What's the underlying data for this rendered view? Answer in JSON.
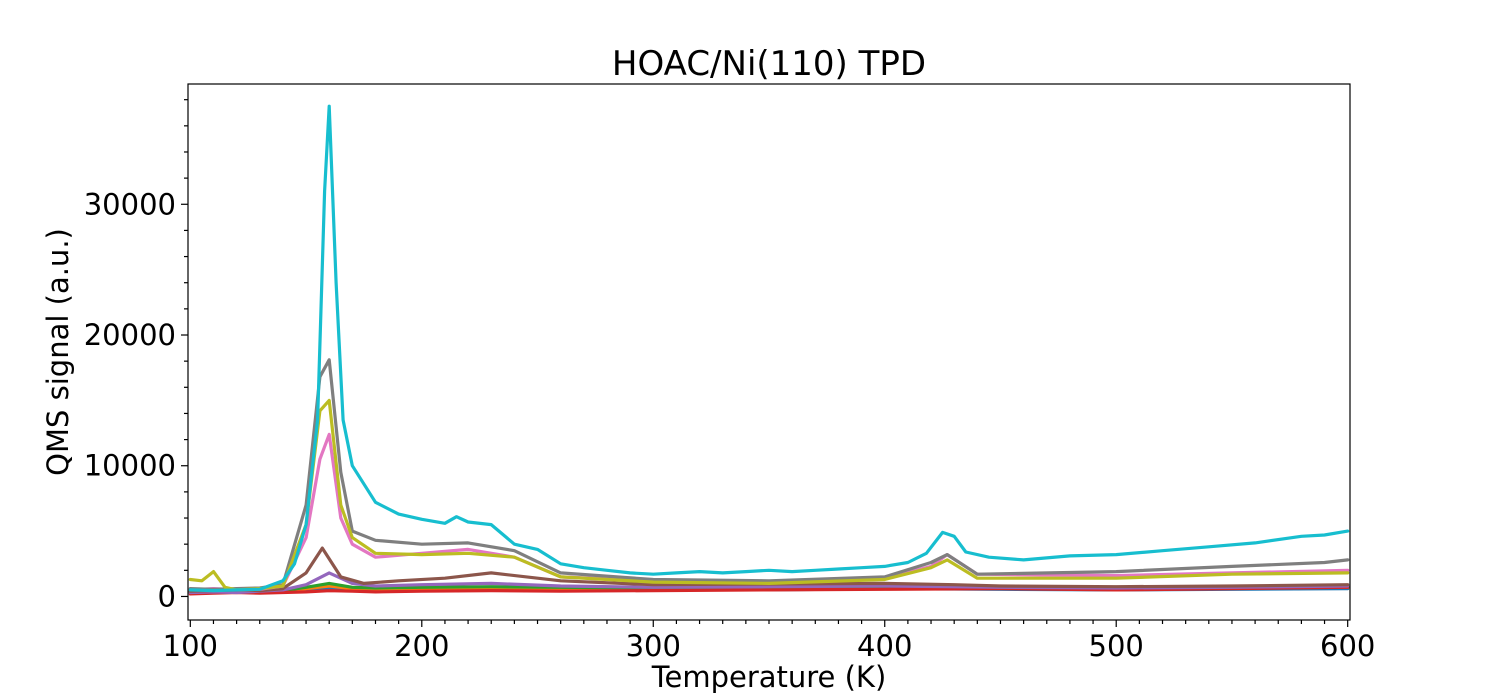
{
  "chart_data": {
    "type": "line",
    "title": "HOAC/Ni(110) TPD",
    "xlabel": "Temperature (K)",
    "ylabel": "QMS signal (a.u.)",
    "xlim": [
      99,
      601
    ],
    "ylim": [
      -1800,
      39200
    ],
    "xticks": [
      100,
      200,
      300,
      400,
      500,
      600
    ],
    "yticks": [
      0,
      10000,
      20000,
      30000
    ],
    "legend": "none",
    "grid": false,
    "series": [
      {
        "color": "#1f77b4",
        "points": [
          [
            100,
            300
          ],
          [
            110,
            350
          ],
          [
            120,
            400
          ],
          [
            130,
            300
          ],
          [
            140,
            350
          ],
          [
            150,
            500
          ],
          [
            160,
            600
          ],
          [
            170,
            500
          ],
          [
            180,
            450
          ],
          [
            200,
            500
          ],
          [
            230,
            550
          ],
          [
            260,
            500
          ],
          [
            300,
            550
          ],
          [
            350,
            500
          ],
          [
            400,
            600
          ],
          [
            450,
            550
          ],
          [
            500,
            500
          ],
          [
            550,
            550
          ],
          [
            600,
            600
          ]
        ]
      },
      {
        "color": "#ff7f0e",
        "points": [
          [
            100,
            400
          ],
          [
            110,
            450
          ],
          [
            120,
            350
          ],
          [
            130,
            400
          ],
          [
            140,
            400
          ],
          [
            150,
            600
          ],
          [
            160,
            800
          ],
          [
            170,
            600
          ],
          [
            180,
            550
          ],
          [
            200,
            600
          ],
          [
            230,
            650
          ],
          [
            260,
            600
          ],
          [
            300,
            600
          ],
          [
            350,
            650
          ],
          [
            400,
            700
          ],
          [
            450,
            650
          ],
          [
            500,
            600
          ],
          [
            550,
            650
          ],
          [
            600,
            700
          ]
        ]
      },
      {
        "color": "#2ca02c",
        "points": [
          [
            100,
            350
          ],
          [
            110,
            400
          ],
          [
            120,
            400
          ],
          [
            130,
            350
          ],
          [
            140,
            450
          ],
          [
            150,
            700
          ],
          [
            160,
            1000
          ],
          [
            170,
            700
          ],
          [
            180,
            650
          ],
          [
            200,
            700
          ],
          [
            230,
            750
          ],
          [
            260,
            700
          ],
          [
            300,
            650
          ],
          [
            350,
            700
          ],
          [
            400,
            750
          ],
          [
            450,
            700
          ],
          [
            500,
            650
          ],
          [
            550,
            700
          ],
          [
            600,
            750
          ]
        ]
      },
      {
        "color": "#d62728",
        "points": [
          [
            100,
            200
          ],
          [
            110,
            250
          ],
          [
            120,
            300
          ],
          [
            130,
            250
          ],
          [
            140,
            300
          ],
          [
            150,
            350
          ],
          [
            160,
            450
          ],
          [
            170,
            400
          ],
          [
            180,
            350
          ],
          [
            200,
            400
          ],
          [
            230,
            450
          ],
          [
            260,
            400
          ],
          [
            300,
            450
          ],
          [
            350,
            500
          ],
          [
            400,
            550
          ],
          [
            450,
            600
          ],
          [
            500,
            500
          ],
          [
            550,
            600
          ],
          [
            600,
            700
          ]
        ]
      },
      {
        "color": "#9467bd",
        "points": [
          [
            100,
            300
          ],
          [
            110,
            350
          ],
          [
            120,
            300
          ],
          [
            130,
            400
          ],
          [
            140,
            500
          ],
          [
            150,
            900
          ],
          [
            160,
            1800
          ],
          [
            170,
            1000
          ],
          [
            180,
            800
          ],
          [
            200,
            900
          ],
          [
            230,
            1000
          ],
          [
            260,
            800
          ],
          [
            300,
            700
          ],
          [
            350,
            750
          ],
          [
            400,
            800
          ],
          [
            450,
            700
          ],
          [
            500,
            650
          ],
          [
            550,
            700
          ],
          [
            600,
            800
          ]
        ]
      },
      {
        "color": "#8c564b",
        "points": [
          [
            100,
            400
          ],
          [
            110,
            450
          ],
          [
            120,
            500
          ],
          [
            130,
            450
          ],
          [
            140,
            600
          ],
          [
            150,
            1800
          ],
          [
            157,
            3700
          ],
          [
            165,
            1500
          ],
          [
            175,
            1000
          ],
          [
            190,
            1200
          ],
          [
            210,
            1400
          ],
          [
            230,
            1800
          ],
          [
            260,
            1200
          ],
          [
            300,
            900
          ],
          [
            350,
            950
          ],
          [
            400,
            1000
          ],
          [
            430,
            900
          ],
          [
            450,
            800
          ],
          [
            500,
            750
          ],
          [
            550,
            800
          ],
          [
            600,
            900
          ]
        ]
      },
      {
        "color": "#e377c2",
        "points": [
          [
            100,
            500
          ],
          [
            110,
            600
          ],
          [
            120,
            500
          ],
          [
            130,
            550
          ],
          [
            140,
            800
          ],
          [
            150,
            4500
          ],
          [
            156,
            10500
          ],
          [
            160,
            12400
          ],
          [
            165,
            6000
          ],
          [
            170,
            4000
          ],
          [
            180,
            3000
          ],
          [
            200,
            3300
          ],
          [
            220,
            3600
          ],
          [
            240,
            3000
          ],
          [
            260,
            1500
          ],
          [
            300,
            1200
          ],
          [
            350,
            1100
          ],
          [
            400,
            1400
          ],
          [
            420,
            2300
          ],
          [
            427,
            3200
          ],
          [
            440,
            1700
          ],
          [
            500,
            1600
          ],
          [
            550,
            1800
          ],
          [
            600,
            2000
          ]
        ]
      },
      {
        "color": "#7f7f7f",
        "points": [
          [
            100,
            600
          ],
          [
            110,
            550
          ],
          [
            120,
            600
          ],
          [
            130,
            650
          ],
          [
            140,
            900
          ],
          [
            150,
            7000
          ],
          [
            156,
            16800
          ],
          [
            160,
            18100
          ],
          [
            165,
            9500
          ],
          [
            170,
            5000
          ],
          [
            180,
            4300
          ],
          [
            200,
            4000
          ],
          [
            220,
            4100
          ],
          [
            240,
            3500
          ],
          [
            260,
            1800
          ],
          [
            300,
            1300
          ],
          [
            350,
            1200
          ],
          [
            400,
            1500
          ],
          [
            420,
            2600
          ],
          [
            427,
            3200
          ],
          [
            440,
            1700
          ],
          [
            500,
            1900
          ],
          [
            550,
            2300
          ],
          [
            590,
            2600
          ],
          [
            600,
            2800
          ]
        ]
      },
      {
        "color": "#bcbd22",
        "points": [
          [
            100,
            1300
          ],
          [
            105,
            1200
          ],
          [
            110,
            1900
          ],
          [
            115,
            700
          ],
          [
            120,
            500
          ],
          [
            130,
            600
          ],
          [
            140,
            800
          ],
          [
            150,
            5500
          ],
          [
            156,
            14200
          ],
          [
            160,
            15000
          ],
          [
            165,
            7000
          ],
          [
            170,
            4500
          ],
          [
            180,
            3300
          ],
          [
            200,
            3200
          ],
          [
            220,
            3300
          ],
          [
            240,
            3000
          ],
          [
            260,
            1500
          ],
          [
            300,
            1100
          ],
          [
            350,
            1000
          ],
          [
            400,
            1300
          ],
          [
            420,
            2200
          ],
          [
            427,
            2800
          ],
          [
            440,
            1400
          ],
          [
            500,
            1400
          ],
          [
            550,
            1700
          ],
          [
            600,
            1800
          ]
        ]
      },
      {
        "color": "#17becf",
        "points": [
          [
            100,
            500
          ],
          [
            110,
            450
          ],
          [
            120,
            500
          ],
          [
            130,
            550
          ],
          [
            140,
            1200
          ],
          [
            145,
            2500
          ],
          [
            150,
            5500
          ],
          [
            155,
            13500
          ],
          [
            158,
            31000
          ],
          [
            160,
            37500
          ],
          [
            163,
            24000
          ],
          [
            166,
            13500
          ],
          [
            170,
            10000
          ],
          [
            180,
            7200
          ],
          [
            190,
            6300
          ],
          [
            200,
            5900
          ],
          [
            210,
            5600
          ],
          [
            215,
            6100
          ],
          [
            220,
            5700
          ],
          [
            230,
            5500
          ],
          [
            240,
            4000
          ],
          [
            250,
            3600
          ],
          [
            260,
            2500
          ],
          [
            270,
            2200
          ],
          [
            280,
            2000
          ],
          [
            290,
            1800
          ],
          [
            300,
            1700
          ],
          [
            310,
            1800
          ],
          [
            320,
            1900
          ],
          [
            330,
            1800
          ],
          [
            340,
            1900
          ],
          [
            350,
            2000
          ],
          [
            360,
            1900
          ],
          [
            370,
            2000
          ],
          [
            380,
            2100
          ],
          [
            390,
            2200
          ],
          [
            400,
            2300
          ],
          [
            410,
            2600
          ],
          [
            418,
            3300
          ],
          [
            425,
            4900
          ],
          [
            430,
            4600
          ],
          [
            435,
            3400
          ],
          [
            445,
            3000
          ],
          [
            460,
            2800
          ],
          [
            480,
            3100
          ],
          [
            500,
            3200
          ],
          [
            520,
            3500
          ],
          [
            540,
            3800
          ],
          [
            560,
            4100
          ],
          [
            580,
            4600
          ],
          [
            590,
            4700
          ],
          [
            600,
            5000
          ]
        ]
      }
    ]
  }
}
